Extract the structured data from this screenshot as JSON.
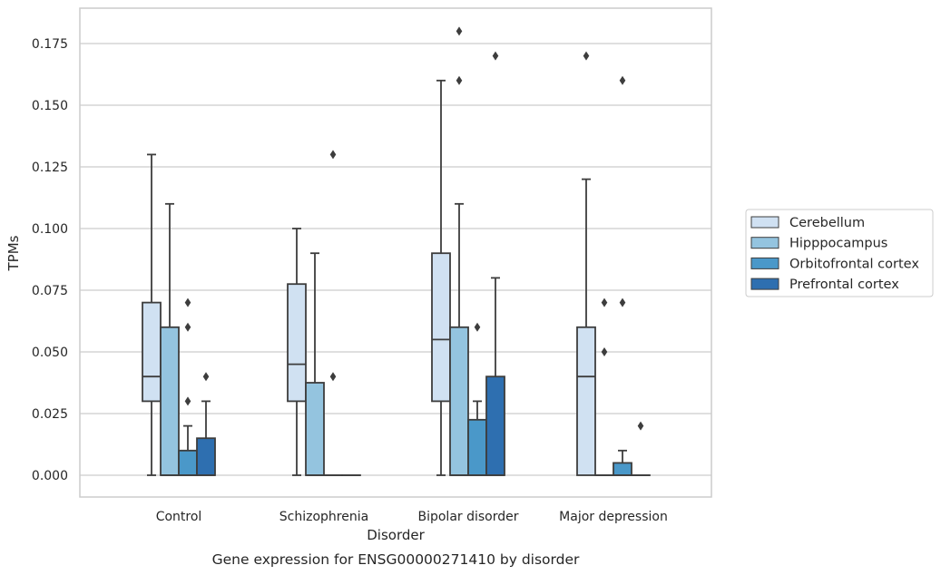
{
  "chart_data": {
    "type": "box",
    "caption": "Gene expression for ENSG00000271410 by disorder",
    "xlabel": "Disorder",
    "ylabel": "TPMs",
    "ylim": [
      -0.009,
      0.189
    ],
    "yticks": [
      0.0,
      0.025,
      0.05,
      0.075,
      0.1,
      0.125,
      0.15,
      0.175
    ],
    "ytick_labels": [
      "0.000",
      "0.025",
      "0.050",
      "0.075",
      "0.100",
      "0.125",
      "0.150",
      "0.175"
    ],
    "categories": [
      "Control",
      "Schizophrenia",
      "Bipolar disorder",
      "Major depression"
    ],
    "grid": "horizontal",
    "legend_position": "right",
    "series": [
      {
        "name": "Cerebellum",
        "color": "#d0e1f2",
        "boxes": [
          {
            "whisker_low": 0.0,
            "q1": 0.03,
            "median": 0.04,
            "q3": 0.07,
            "whisker_high": 0.13,
            "outliers": []
          },
          {
            "whisker_low": 0.0,
            "q1": 0.03,
            "median": 0.045,
            "q3": 0.0775,
            "whisker_high": 0.1,
            "outliers": []
          },
          {
            "whisker_low": 0.0,
            "q1": 0.03,
            "median": 0.055,
            "q3": 0.09,
            "whisker_high": 0.16,
            "outliers": []
          },
          {
            "whisker_low": 0.0,
            "q1": 0.0,
            "median": 0.04,
            "q3": 0.06,
            "whisker_high": 0.12,
            "outliers": [
              0.17
            ]
          }
        ]
      },
      {
        "name": "Hipppocampus",
        "color": "#94c4df",
        "boxes": [
          {
            "whisker_low": 0.0,
            "q1": 0.0,
            "median": 0.0,
            "q3": 0.06,
            "whisker_high": 0.11,
            "outliers": []
          },
          {
            "whisker_low": 0.0,
            "q1": 0.0,
            "median": 0.0,
            "q3": 0.0375,
            "whisker_high": 0.09,
            "outliers": []
          },
          {
            "whisker_low": 0.0,
            "q1": 0.0,
            "median": 0.0,
            "q3": 0.06,
            "whisker_high": 0.11,
            "outliers": [
              0.16,
              0.18
            ]
          },
          {
            "whisker_low": 0.0,
            "q1": 0.0,
            "median": 0.0,
            "q3": 0.0,
            "whisker_high": 0.0,
            "outliers": [
              0.05,
              0.07
            ]
          }
        ]
      },
      {
        "name": "Orbitofrontal cortex",
        "color": "#4a98c9",
        "boxes": [
          {
            "whisker_low": 0.0,
            "q1": 0.0,
            "median": 0.0,
            "q3": 0.01,
            "whisker_high": 0.02,
            "outliers": [
              0.03,
              0.06,
              0.07
            ]
          },
          {
            "whisker_low": 0.0,
            "q1": 0.0,
            "median": 0.0,
            "q3": 0.0,
            "whisker_high": 0.0,
            "outliers": [
              0.04,
              0.13
            ]
          },
          {
            "whisker_low": 0.0,
            "q1": 0.0,
            "median": 0.0,
            "q3": 0.0225,
            "whisker_high": 0.03,
            "outliers": [
              0.06
            ]
          },
          {
            "whisker_low": 0.0,
            "q1": 0.0,
            "median": 0.0,
            "q3": 0.005,
            "whisker_high": 0.01,
            "outliers": [
              0.07,
              0.16
            ]
          }
        ]
      },
      {
        "name": "Prefrontal cortex",
        "color": "#2e6fb0",
        "boxes": [
          {
            "whisker_low": 0.0,
            "q1": 0.0,
            "median": 0.0,
            "q3": 0.015,
            "whisker_high": 0.03,
            "outliers": [
              0.04
            ]
          },
          {
            "whisker_low": 0.0,
            "q1": 0.0,
            "median": 0.0,
            "q3": 0.0,
            "whisker_high": 0.0,
            "outliers": []
          },
          {
            "whisker_low": 0.0,
            "q1": 0.0,
            "median": 0.0,
            "q3": 0.04,
            "whisker_high": 0.08,
            "outliers": [
              0.17
            ]
          },
          {
            "whisker_low": 0.0,
            "q1": 0.0,
            "median": 0.0,
            "q3": 0.0,
            "whisker_high": 0.0,
            "outliers": [
              0.02
            ]
          }
        ]
      }
    ]
  }
}
